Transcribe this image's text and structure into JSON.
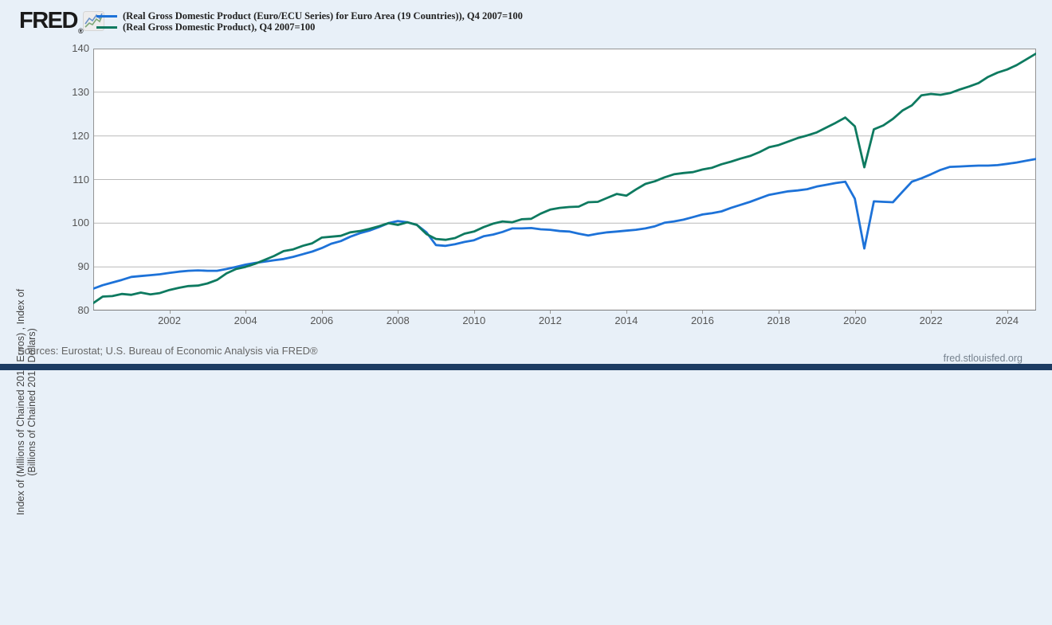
{
  "header": {
    "logo_text": "FRED",
    "logo_registered": "®",
    "legend": [
      {
        "label": "(Real Gross Domestic Product (Euro/ECU Series) for Euro Area (19 Countries)), Q4 2007=100",
        "color": "#1d72d8"
      },
      {
        "label": "(Real Gross Domestic Product), Q4 2007=100",
        "color": "#0e7a60"
      }
    ]
  },
  "footer": {
    "sources": "Sources: Eurostat; U.S. Bureau of Economic Analysis via FRED®",
    "site": "fred.stlouisfed.org"
  },
  "chart_data": {
    "type": "line",
    "title": "",
    "ylabel_line1": "Index of (Millions of Chained 2010 Euros) , Index of",
    "ylabel_line2": "(Billions of Chained 2017 Dollars)",
    "grid": "horizontal",
    "legend_position": "top-left",
    "xlim": [
      2000.0,
      2024.76
    ],
    "ylim": [
      80,
      140
    ],
    "y_ticks": [
      80,
      90,
      100,
      110,
      120,
      130,
      140
    ],
    "x_ticks": [
      2002,
      2004,
      2006,
      2008,
      2010,
      2012,
      2014,
      2016,
      2018,
      2020,
      2022,
      2024
    ],
    "x_start": 2000.0,
    "x_step": 0.25,
    "frequency": "quarterly",
    "series": [
      {
        "name": "(Real Gross Domestic Product (Euro/ECU Series) for Euro Area (19 Countries)), Q4 2007=100",
        "color": "#1d72d8",
        "values": [
          85.0,
          85.8,
          86.4,
          87.0,
          87.7,
          87.9,
          88.1,
          88.3,
          88.6,
          88.9,
          89.1,
          89.2,
          89.1,
          89.1,
          89.5,
          90.0,
          90.5,
          90.9,
          91.2,
          91.5,
          91.8,
          92.3,
          92.9,
          93.5,
          94.3,
          95.3,
          95.9,
          96.9,
          97.7,
          98.3,
          99.1,
          100.0,
          100.5,
          100.2,
          99.6,
          97.9,
          95.0,
          94.8,
          95.2,
          95.7,
          96.1,
          97.0,
          97.4,
          98.0,
          98.8,
          98.8,
          98.9,
          98.6,
          98.5,
          98.2,
          98.1,
          97.6,
          97.2,
          97.6,
          97.9,
          98.1,
          98.3,
          98.5,
          98.8,
          99.3,
          100.1,
          100.4,
          100.8,
          101.4,
          102.0,
          102.3,
          102.7,
          103.5,
          104.2,
          104.9,
          105.7,
          106.5,
          106.9,
          107.3,
          107.5,
          107.8,
          108.4,
          108.8,
          109.2,
          109.5,
          105.6,
          94.2,
          105.0,
          104.9,
          104.8,
          107.2,
          109.5,
          110.3,
          111.2,
          112.2,
          112.9,
          113.0,
          113.1,
          113.2,
          113.2,
          113.3,
          113.6,
          113.9,
          114.3,
          114.7
        ]
      },
      {
        "name": "(Real Gross Domestic Product), Q4 2007=100",
        "color": "#0e7a60",
        "values": [
          81.7,
          83.2,
          83.3,
          83.8,
          83.6,
          84.1,
          83.7,
          84.0,
          84.7,
          85.2,
          85.6,
          85.7,
          86.2,
          87.0,
          88.5,
          89.5,
          90.0,
          90.7,
          91.6,
          92.5,
          93.6,
          94.0,
          94.8,
          95.4,
          96.7,
          96.9,
          97.1,
          97.9,
          98.2,
          98.7,
          99.3,
          100.0,
          99.6,
          100.2,
          99.6,
          97.5,
          96.4,
          96.2,
          96.6,
          97.6,
          98.1,
          99.1,
          99.9,
          100.4,
          100.2,
          100.9,
          101.0,
          102.2,
          103.1,
          103.5,
          103.7,
          103.8,
          104.8,
          104.9,
          105.8,
          106.7,
          106.3,
          107.7,
          109.0,
          109.6,
          110.5,
          111.2,
          111.5,
          111.7,
          112.3,
          112.7,
          113.5,
          114.1,
          114.8,
          115.4,
          116.3,
          117.4,
          117.9,
          118.7,
          119.5,
          120.1,
          120.8,
          121.9,
          123.0,
          124.2,
          122.2,
          112.8,
          121.5,
          122.4,
          123.9,
          125.8,
          127.0,
          129.3,
          129.6,
          129.4,
          129.8,
          130.6,
          131.3,
          132.1,
          133.5,
          134.5,
          135.2,
          136.2,
          137.5,
          138.8
        ]
      }
    ]
  }
}
